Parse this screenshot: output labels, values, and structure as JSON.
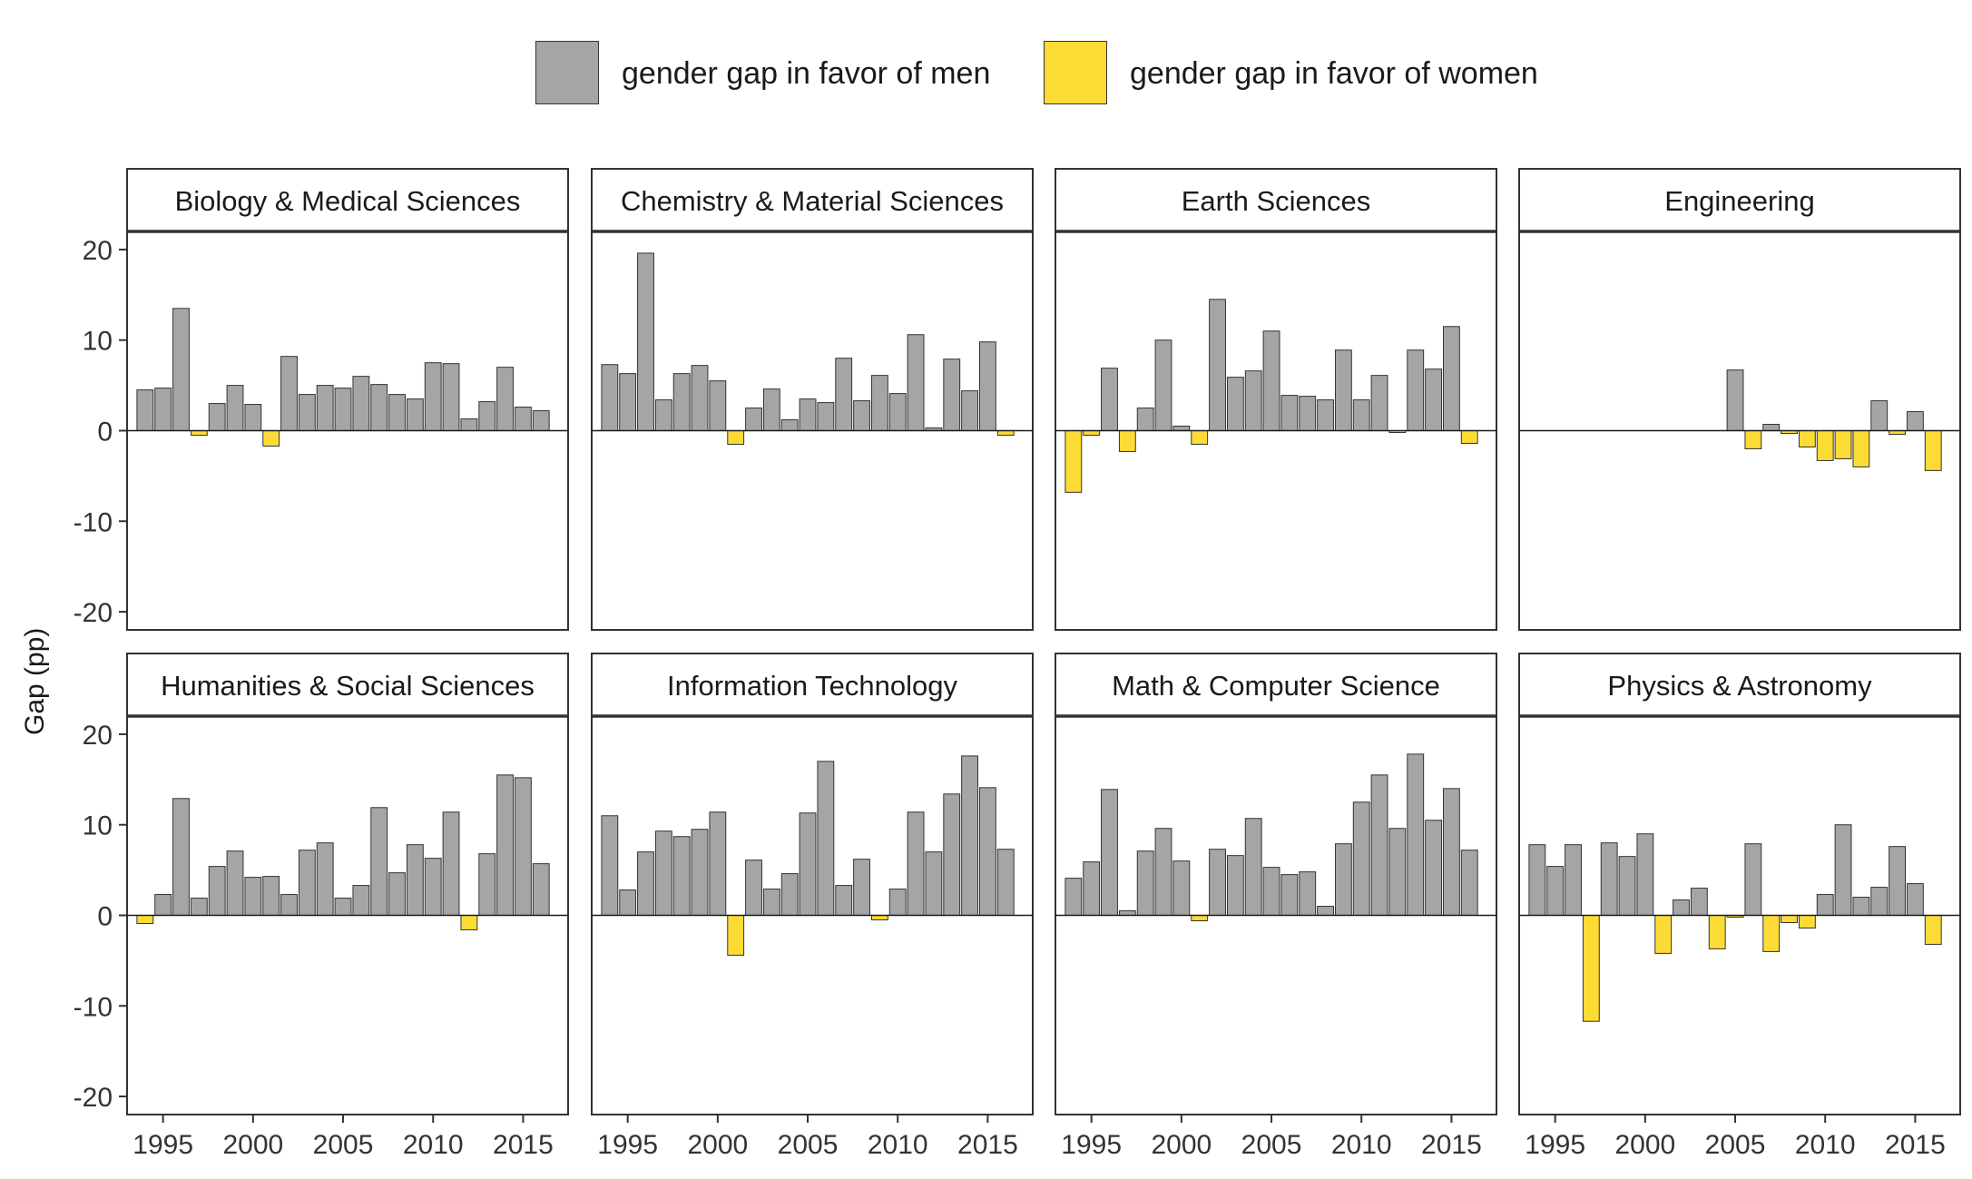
{
  "legend": [
    {
      "label": "gender gap in favor of men",
      "color": "#a5a5a5"
    },
    {
      "label": "gender gap in favor of women",
      "color": "#fddb35"
    }
  ],
  "chart_data": {
    "type": "bar",
    "layout": "facet-grid 2x4",
    "ylabel": "Gap (pp)",
    "xlabel": "",
    "ylim": [
      -22,
      22
    ],
    "yticks": [
      -20,
      -10,
      0,
      10,
      20
    ],
    "xlim": [
      1993,
      2017.5
    ],
    "xticks": [
      1995,
      2000,
      2005,
      2010,
      2015
    ],
    "positive_color": "#a5a5a5",
    "negative_color": "#fddb35",
    "panels": [
      {
        "title": "Biology & Medical Sciences",
        "x": [
          1994,
          1995,
          1996,
          1997,
          1998,
          1999,
          2000,
          2001,
          2002,
          2003,
          2004,
          2005,
          2006,
          2007,
          2008,
          2009,
          2010,
          2011,
          2012,
          2013,
          2014,
          2015,
          2016
        ],
        "values": [
          4.5,
          4.7,
          13.5,
          -0.5,
          3.0,
          5.0,
          2.9,
          -1.7,
          8.2,
          4.0,
          5.0,
          4.7,
          6.0,
          5.1,
          4.0,
          3.5,
          7.5,
          7.4,
          1.3,
          3.2,
          7.0,
          2.6,
          2.2
        ]
      },
      {
        "title": "Chemistry & Material Sciences",
        "x": [
          1994,
          1995,
          1996,
          1997,
          1998,
          1999,
          2000,
          2001,
          2002,
          2003,
          2004,
          2005,
          2006,
          2007,
          2008,
          2009,
          2010,
          2011,
          2012,
          2013,
          2014,
          2015,
          2016
        ],
        "values": [
          7.3,
          6.3,
          19.6,
          3.4,
          6.3,
          7.2,
          5.5,
          -1.5,
          2.5,
          4.6,
          1.2,
          3.5,
          3.1,
          8.0,
          3.3,
          6.1,
          4.1,
          10.6,
          0.3,
          7.9,
          4.4,
          9.8,
          -0.5
        ]
      },
      {
        "title": "Earth Sciences",
        "x": [
          1994,
          1995,
          1996,
          1997,
          1998,
          1999,
          2000,
          2001,
          2002,
          2003,
          2004,
          2005,
          2006,
          2007,
          2008,
          2009,
          2010,
          2011,
          2012,
          2013,
          2014,
          2015,
          2016
        ],
        "values": [
          -6.8,
          -0.5,
          6.9,
          -2.3,
          2.5,
          10.0,
          0.5,
          -1.5,
          14.5,
          5.9,
          6.6,
          11.0,
          3.9,
          3.8,
          3.4,
          8.9,
          3.4,
          6.1,
          -0.2,
          8.9,
          6.8,
          11.5,
          -1.4
        ]
      },
      {
        "title": "Engineering",
        "x": [
          2005,
          2006,
          2007,
          2008,
          2009,
          2010,
          2011,
          2012,
          2013,
          2014,
          2015,
          2016
        ],
        "values": [
          6.7,
          -2.0,
          0.7,
          -0.3,
          -1.8,
          -3.3,
          -3.1,
          -4.0,
          3.3,
          -0.4,
          2.1,
          -4.4
        ]
      },
      {
        "title": "Humanities & Social Sciences",
        "x": [
          1994,
          1995,
          1996,
          1997,
          1998,
          1999,
          2000,
          2001,
          2002,
          2003,
          2004,
          2005,
          2006,
          2007,
          2008,
          2009,
          2010,
          2011,
          2012,
          2013,
          2014,
          2015,
          2016
        ],
        "values": [
          -0.9,
          2.3,
          12.9,
          1.9,
          5.4,
          7.1,
          4.2,
          4.3,
          2.3,
          7.2,
          8.0,
          1.9,
          3.3,
          11.9,
          4.7,
          7.8,
          6.3,
          11.4,
          -1.6,
          6.8,
          15.5,
          15.2,
          5.7
        ]
      },
      {
        "title": "Information Technology",
        "x": [
          1994,
          1995,
          1996,
          1997,
          1998,
          1999,
          2000,
          2001,
          2002,
          2003,
          2004,
          2005,
          2006,
          2007,
          2008,
          2009,
          2010,
          2011,
          2012,
          2013,
          2014,
          2015,
          2016
        ],
        "values": [
          11.0,
          2.8,
          7.0,
          9.3,
          8.7,
          9.5,
          11.4,
          -4.4,
          6.1,
          2.9,
          4.6,
          11.3,
          17.0,
          3.3,
          6.2,
          -0.5,
          2.9,
          11.4,
          7.0,
          13.4,
          17.6,
          14.1,
          7.3
        ]
      },
      {
        "title": "Math & Computer Science",
        "x": [
          1994,
          1995,
          1996,
          1997,
          1998,
          1999,
          2000,
          2001,
          2002,
          2003,
          2004,
          2005,
          2006,
          2007,
          2008,
          2009,
          2010,
          2011,
          2012,
          2013,
          2014,
          2015,
          2016
        ],
        "values": [
          4.1,
          5.9,
          13.9,
          0.5,
          7.1,
          9.6,
          6.0,
          -0.6,
          7.3,
          6.6,
          10.7,
          5.3,
          4.5,
          4.8,
          1.0,
          7.9,
          12.5,
          15.5,
          9.6,
          17.8,
          10.5,
          14.0,
          7.2
        ]
      },
      {
        "title": "Physics & Astronomy",
        "x": [
          1994,
          1995,
          1996,
          1997,
          1998,
          1999,
          2000,
          2001,
          2002,
          2003,
          2004,
          2005,
          2006,
          2007,
          2008,
          2009,
          2010,
          2011,
          2012,
          2013,
          2014,
          2015,
          2016
        ],
        "values": [
          7.8,
          5.4,
          7.8,
          -11.7,
          8.0,
          6.5,
          9.0,
          -4.2,
          1.7,
          3.0,
          -3.7,
          -0.2,
          7.9,
          -4.0,
          -0.8,
          -1.4,
          2.3,
          10.0,
          2.0,
          3.1,
          7.6,
          3.5,
          -3.2
        ]
      }
    ]
  }
}
